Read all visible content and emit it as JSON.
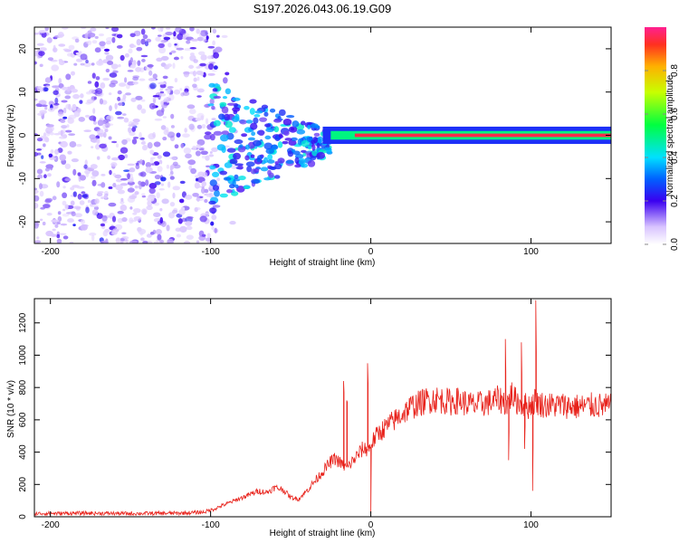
{
  "title": "S197.2026.043.06.19.G09",
  "colors": {
    "snr_line": "#e8221b",
    "axis": "#000000",
    "spectrum_low": "#b090ff",
    "spectrum_mid": "#5a00e0",
    "spectrum_high": "#ff2050"
  },
  "chart_data": [
    {
      "type": "heatmap",
      "title": "S197.2026.043.06.19.G09",
      "xlabel": "Height of straight line (km)",
      "ylabel": "Frequency (Hz)",
      "xlim": [
        -210,
        150
      ],
      "ylim": [
        -25,
        25
      ],
      "xticks": [
        -200,
        -100,
        0,
        100
      ],
      "xtick_labels": [
        "-200",
        "-100",
        "0",
        "100"
      ],
      "yticks": [
        -20,
        -10,
        0,
        10,
        20
      ],
      "ytick_labels": [
        "-20",
        "-10",
        "0",
        "10",
        "20"
      ],
      "colorbar": {
        "label": "Normalized spectral amplitude",
        "range": [
          0.0,
          1.0
        ],
        "ticks": [
          0.0,
          0.2,
          0.4,
          0.6,
          0.8
        ],
        "tick_labels": [
          "0.0",
          "0.2",
          "0.4",
          "0.6",
          "0.8"
        ]
      },
      "description_regions": [
        {
          "x_range": [
            -210,
            -100
          ],
          "freq_range": [
            -25,
            25
          ],
          "amplitude": 0.1,
          "pattern": "scattered noise"
        },
        {
          "x_range": [
            -100,
            -30
          ],
          "freq_range": [
            -12,
            12
          ],
          "amplitude": 0.25,
          "pattern": "converging signal"
        },
        {
          "x_range": [
            -30,
            150
          ],
          "freq_center": 0,
          "amplitude": 1.0,
          "pattern": "strong carrier line"
        }
      ]
    },
    {
      "type": "line",
      "xlabel": "Height of straight line (km)",
      "ylabel": "SNR (10 * v/v)",
      "xlim": [
        -210,
        150
      ],
      "ylim": [
        0,
        1350
      ],
      "xticks": [
        -200,
        -100,
        0,
        100
      ],
      "xtick_labels": [
        "-200",
        "-100",
        "0",
        "100"
      ],
      "yticks": [
        0,
        200,
        400,
        600,
        800,
        1000,
        1200
      ],
      "ytick_labels": [
        "0",
        "200",
        "400",
        "600",
        "800",
        "1000",
        "1200"
      ],
      "series": [
        {
          "name": "SNR",
          "x": [
            -210,
            -180,
            -150,
            -120,
            -105,
            -100,
            -95,
            -90,
            -85,
            -80,
            -75,
            -70,
            -65,
            -60,
            -55,
            -50,
            -45,
            -40,
            -35,
            -30,
            -25,
            -22,
            -20,
            -15,
            -10,
            -5,
            -1,
            0,
            5,
            10,
            15,
            20,
            25,
            30,
            35,
            40,
            45,
            50,
            55,
            60,
            65,
            70,
            75,
            80,
            85,
            88,
            90,
            95,
            98,
            100,
            103,
            105,
            110,
            120,
            130,
            140,
            150
          ],
          "y": [
            20,
            22,
            20,
            22,
            28,
            40,
            60,
            80,
            100,
            120,
            140,
            160,
            150,
            180,
            170,
            120,
            110,
            160,
            220,
            280,
            340,
            360,
            340,
            300,
            360,
            420,
            420,
            450,
            520,
            560,
            600,
            640,
            680,
            700,
            720,
            730,
            720,
            710,
            720,
            700,
            690,
            700,
            710,
            730,
            700,
            760,
            720,
            700,
            680,
            700,
            720,
            700,
            690,
            690,
            680,
            690,
            680
          ]
        }
      ],
      "spikes": [
        {
          "x": -17,
          "y": 840
        },
        {
          "x": -15,
          "y": 720
        },
        {
          "x": -2,
          "y": 950
        },
        {
          "x": 0,
          "y": 20
        },
        {
          "x": 84,
          "y": 1100
        },
        {
          "x": 86,
          "y": 350
        },
        {
          "x": 94,
          "y": 1080
        },
        {
          "x": 96,
          "y": 420
        },
        {
          "x": 101,
          "y": 160
        },
        {
          "x": 103,
          "y": 1340
        }
      ]
    }
  ]
}
